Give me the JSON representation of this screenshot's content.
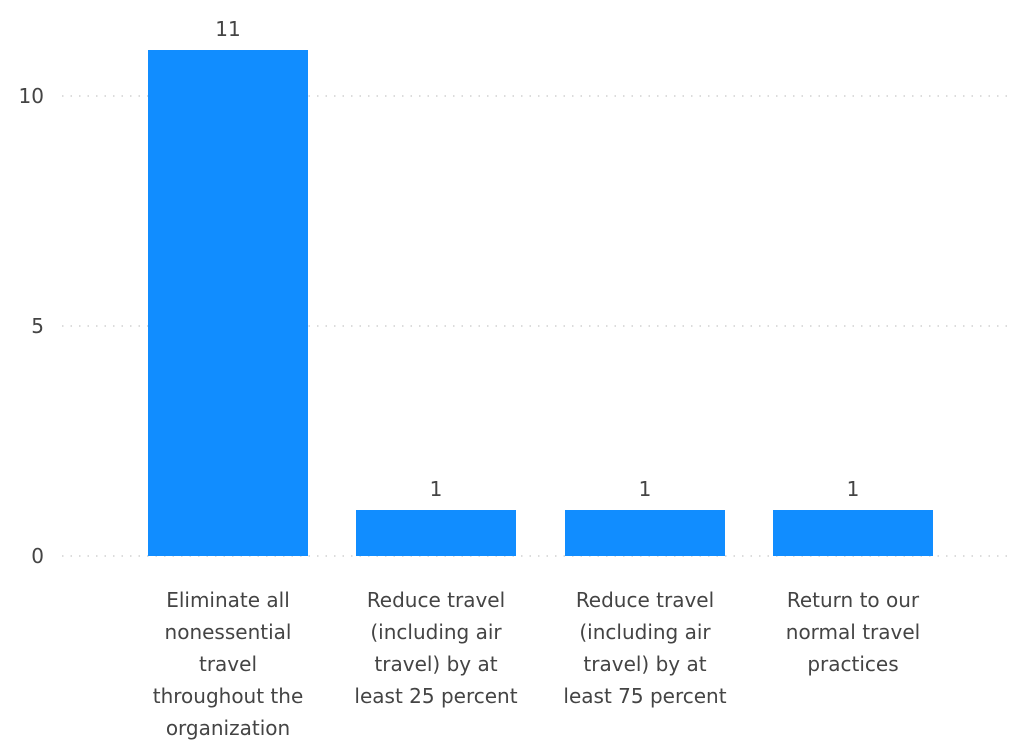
{
  "chart_data": {
    "type": "bar",
    "categories": [
      "Eliminate all nonessential travel throughout the organization",
      "Reduce travel (including air travel) by at least 25 percent",
      "Reduce travel (including air travel) by at least 75 percent",
      "Return to our normal travel practices"
    ],
    "values": [
      11,
      1,
      1,
      1
    ],
    "data_labels": [
      "11",
      "1",
      "1",
      "1"
    ],
    "yticks": [
      "0",
      "5",
      "10"
    ],
    "ylim": [
      0,
      12
    ],
    "grid": true,
    "grid_style": "dotted",
    "legend": "none",
    "title": "",
    "xlabel": "",
    "ylabel": "",
    "bar_color": "#118dff"
  }
}
